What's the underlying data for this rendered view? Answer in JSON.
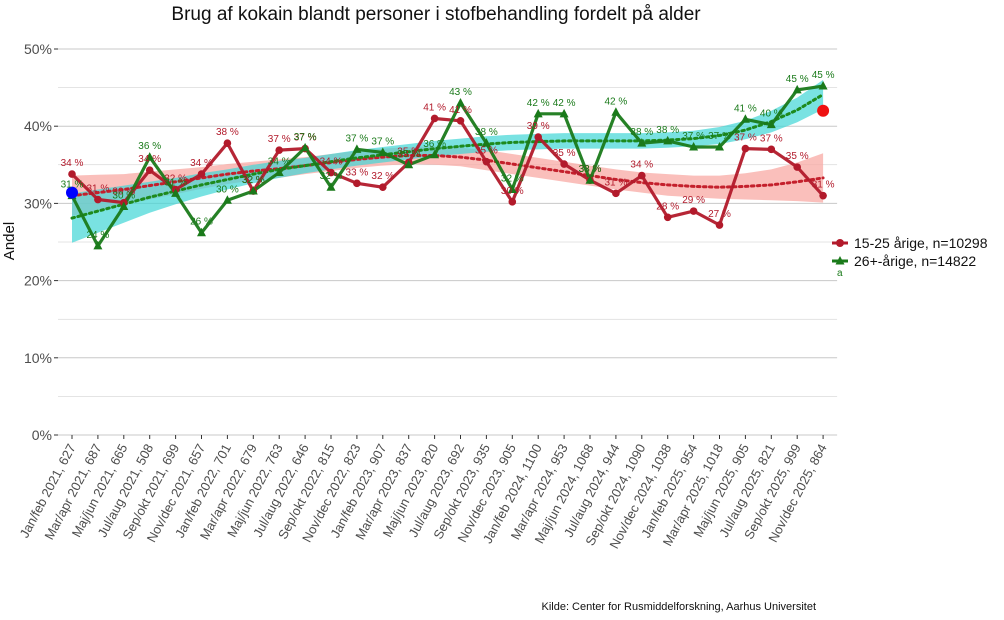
{
  "chart_data": {
    "type": "line",
    "title": "Brug af kokain blandt personer i stofbehandling fordelt på alder",
    "xlabel": "",
    "ylabel": "Andel",
    "ylim": [
      0,
      50
    ],
    "y_ticks": [
      "0%",
      "10%",
      "20%",
      "30%",
      "40%",
      "50%"
    ],
    "caption": "Kilde: Center for Rusmiddelforskning, Aarhus Universitet",
    "categories": [
      "Jan/feb 2021, 627",
      "Mar/apr 2021, 687",
      "Maj/jun 2021, 665",
      "Jul/aug 2021, 508",
      "Sep/okt 2021, 699",
      "Nov/dec 2021, 657",
      "Jan/feb 2022, 701",
      "Mar/apr 2022, 679",
      "Maj/jun 2022, 763",
      "Jul/aug 2022, 646",
      "Sep/okt 2022, 815",
      "Nov/dec 2022, 823",
      "Jan/feb 2023, 907",
      "Mar/apr 2023, 837",
      "Maj/jun 2023, 820",
      "Jul/aug 2023, 692",
      "Sep/okt 2023, 935",
      "Nov/dec 2023, 905",
      "Jan/feb 2024, 1100",
      "Mar/apr 2024, 953",
      "Maj/jun 2024, 1068",
      "Jul/aug 2024, 944",
      "Sep/okt 2024, 1090",
      "Nov/dec 2024, 1038",
      "Jan/feb 2025, 954",
      "Mar/apr 2025, 1018",
      "Maj/jun 2025, 905",
      "Jul/aug 2025, 821",
      "Sep/okt 2025, 999",
      "Nov/dec 2025, 864"
    ],
    "series": [
      {
        "name": "15-25 årige, n=10298",
        "color": "#b2182b",
        "values": [
          33.8,
          30.5,
          30.1,
          34.3,
          31.8,
          33.8,
          37.8,
          31.6,
          36.9,
          37.1,
          34.0,
          32.6,
          32.1,
          35.3,
          41.0,
          40.7,
          35.4,
          30.2,
          38.6,
          35.1,
          33.0,
          31.3,
          33.6,
          28.2,
          29.0,
          27.2,
          37.1,
          37.0,
          34.7,
          31.0
        ],
        "labels": [
          "34 %",
          "31 %",
          "30 %",
          "34 %",
          "32 %",
          "34 %",
          "38 %",
          "32 %",
          "37 %",
          "37 %",
          "34 %",
          "33 %",
          "32 %",
          "35 %",
          "41 %",
          "41 %",
          "35 %",
          "30 %",
          "39 %",
          "35 %",
          "33 %",
          "31 %",
          "34 %",
          "28 %",
          "29 %",
          "27 %",
          "37 %",
          "37 %",
          "35 %",
          "31 %"
        ],
        "trend": [
          31.0,
          31.4,
          31.8,
          32.3,
          32.8,
          33.3,
          33.8,
          34.2,
          34.5,
          34.9,
          35.3,
          35.7,
          36.0,
          36.2,
          36.2,
          36.0,
          35.6,
          35.1,
          34.6,
          34.1,
          33.6,
          33.1,
          32.7,
          32.4,
          32.2,
          32.1,
          32.2,
          32.4,
          32.8,
          33.3
        ],
        "band": [
          2.6,
          2.3,
          2.0,
          1.8,
          1.6,
          1.4,
          1.3,
          1.2,
          1.2,
          1.1,
          1.1,
          1.1,
          1.1,
          1.1,
          1.2,
          1.2,
          1.3,
          1.3,
          1.3,
          1.3,
          1.3,
          1.3,
          1.3,
          1.4,
          1.4,
          1.5,
          1.7,
          2.0,
          2.5,
          3.2
        ]
      },
      {
        "name": "26+-årige, n=14822",
        "color": "#1a7d1a",
        "values": [
          31.0,
          24.5,
          29.6,
          36.0,
          31.3,
          26.2,
          30.4,
          31.6,
          34.0,
          37.2,
          32.1,
          37.0,
          36.6,
          35.0,
          36.3,
          43.0,
          37.8,
          31.8,
          41.6,
          41.6,
          33.0,
          41.8,
          37.8,
          38.1,
          37.3,
          37.3,
          40.9,
          40.2,
          44.7,
          45.2
        ],
        "labels": [
          "31 %",
          "24 %",
          "30 %",
          "36 %",
          "31 %",
          "26 %",
          "30 %",
          "32 %",
          "34 %",
          "37 %",
          "32 %",
          "37 %",
          "37 %",
          "35 %",
          "36 %",
          "43 %",
          "38 %",
          "32 %",
          "42 %",
          "42 %",
          "33 %",
          "42 %",
          "38 %",
          "38 %",
          "37 %",
          "37 %",
          "41 %",
          "40 %",
          "45 %",
          "45 %"
        ],
        "trend": [
          28.1,
          29.0,
          29.9,
          30.8,
          31.6,
          32.4,
          33.1,
          33.8,
          34.4,
          34.9,
          35.4,
          35.9,
          36.3,
          36.7,
          37.1,
          37.4,
          37.7,
          37.9,
          38.0,
          38.1,
          38.1,
          38.1,
          38.1,
          38.2,
          38.4,
          38.8,
          39.5,
          40.6,
          42.1,
          44.1
        ],
        "band": [
          3.2,
          2.8,
          2.4,
          2.0,
          1.7,
          1.5,
          1.3,
          1.2,
          1.1,
          1.0,
          1.0,
          1.0,
          1.0,
          1.0,
          1.0,
          1.0,
          1.0,
          1.0,
          1.0,
          1.0,
          1.0,
          1.0,
          1.0,
          1.0,
          1.0,
          1.1,
          1.2,
          1.4,
          1.6,
          1.9
        ]
      }
    ],
    "highlight_points": [
      {
        "category_index": 0,
        "value": 31.4,
        "color": "#0000ff"
      },
      {
        "category_index": 29,
        "value": 42.0,
        "color": "#ee1111"
      }
    ],
    "legend": {
      "position": "right",
      "entries": [
        "15-25 årige, n=10298",
        "26+-årige, n=14822"
      ],
      "extra_text": "a"
    },
    "colors": {
      "band_young": "#f8a9a4",
      "band_old": "#40d6d6",
      "grid": "#c8c8c8"
    }
  }
}
